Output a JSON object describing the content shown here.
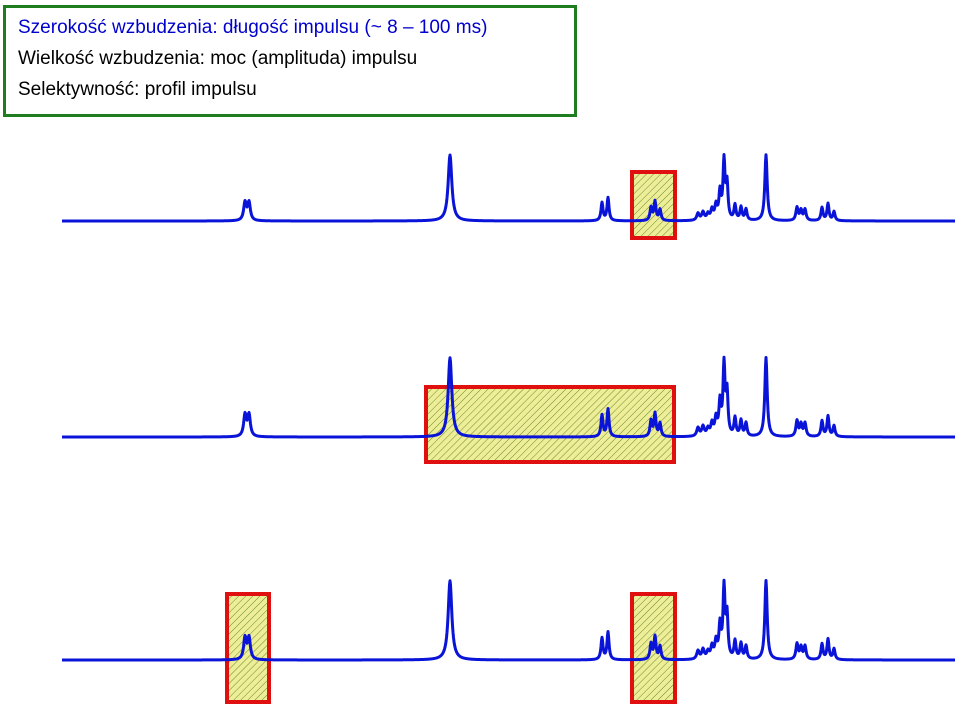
{
  "info": {
    "line1": "Szerokość wzbudzenia: długość impulsu (~ 8 – 100 ms)",
    "line2": "Wielkość wzbudzenia: moc (amplituda) impulsu",
    "line3": "Selektywność: profil impulsu"
  },
  "colors": {
    "trace": "#0a14d8",
    "box_border": "#e01010",
    "box_fill": "#eeee99",
    "hatch": "#6a8a2a",
    "info_border": "#1e7d1e",
    "info_line1": "#0000cc"
  }
}
